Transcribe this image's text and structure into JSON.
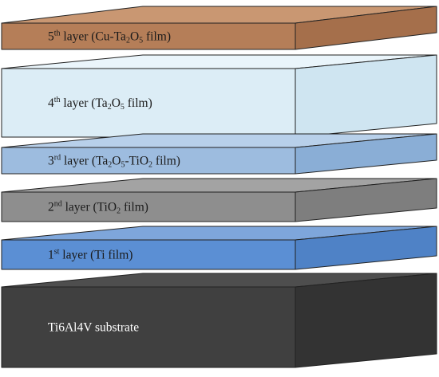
{
  "layers": [
    {
      "id": "layer-5",
      "parts": [
        {
          "t": "5"
        },
        {
          "t": "th",
          "sup": true
        },
        {
          "t": " layer (Cu-Ta"
        },
        {
          "t": "2",
          "sub": true
        },
        {
          "t": "O"
        },
        {
          "t": "5",
          "sub": true
        },
        {
          "t": " film)"
        }
      ],
      "colors": {
        "top": "#c99772",
        "front": "#b57e58",
        "side": "#a56f4b"
      }
    },
    {
      "id": "layer-4",
      "parts": [
        {
          "t": "4"
        },
        {
          "t": "th",
          "sup": true
        },
        {
          "t": " layer (Ta"
        },
        {
          "t": "2",
          "sub": true
        },
        {
          "t": "O"
        },
        {
          "t": "5",
          "sub": true
        },
        {
          "t": " film)"
        }
      ],
      "colors": {
        "top": "#eaf5fb",
        "front": "#dcedf6",
        "side": "#cfe5f1"
      }
    },
    {
      "id": "layer-3",
      "parts": [
        {
          "t": "3"
        },
        {
          "t": "rd",
          "sup": true
        },
        {
          "t": " layer (Ta"
        },
        {
          "t": "2",
          "sub": true
        },
        {
          "t": "O"
        },
        {
          "t": "5",
          "sub": true
        },
        {
          "t": "-TiO"
        },
        {
          "t": "2",
          "sub": true
        },
        {
          "t": " film)"
        }
      ],
      "colors": {
        "top": "#b8d0ea",
        "front": "#9dbcdf",
        "side": "#8aaed6"
      }
    },
    {
      "id": "layer-2",
      "parts": [
        {
          "t": "2"
        },
        {
          "t": "nd",
          "sup": true
        },
        {
          "t": " layer (TiO"
        },
        {
          "t": "2",
          "sub": true
        },
        {
          "t": " film)"
        }
      ],
      "colors": {
        "top": "#a3a3a3",
        "front": "#8e8e8e",
        "side": "#7e7e7e"
      }
    },
    {
      "id": "layer-1",
      "parts": [
        {
          "t": "1"
        },
        {
          "t": "st",
          "sup": true
        },
        {
          "t": " layer (Ti film)"
        }
      ],
      "colors": {
        "top": "#7ea6db",
        "front": "#5b8fd4",
        "side": "#4f82c6"
      }
    },
    {
      "id": "substrate",
      "parts": [
        {
          "t": "Ti6Al4V substrate"
        }
      ],
      "colors": {
        "top": "#4e4e4e",
        "front": "#404040",
        "side": "#333333"
      },
      "text_color": "#ffffff"
    }
  ]
}
